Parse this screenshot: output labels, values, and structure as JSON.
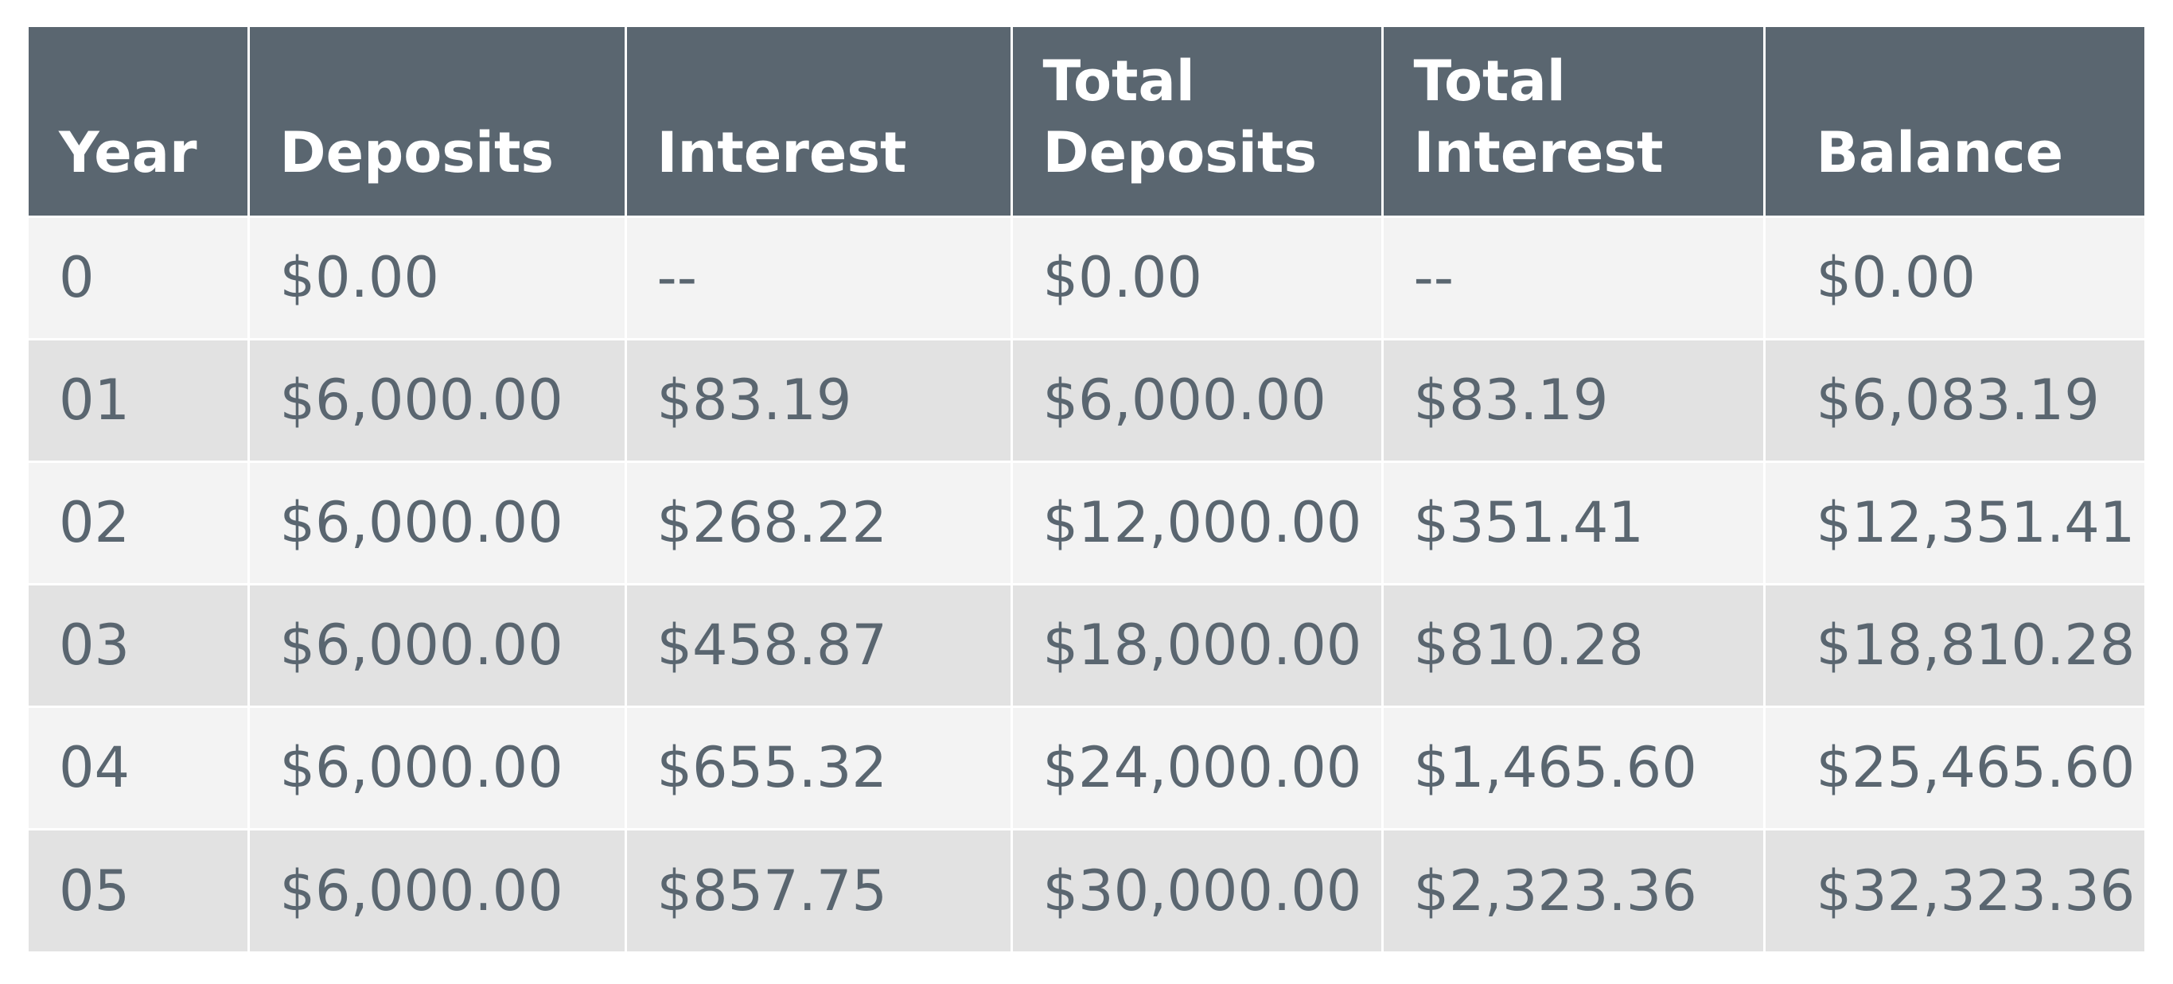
{
  "table": {
    "headers": [
      "Year",
      "Deposits",
      "Interest",
      "Total\nDeposits",
      "Total\nInterest",
      "Balance"
    ],
    "rows": [
      [
        "0",
        "$0.00",
        "--",
        "$0.00",
        "--",
        "$0.00"
      ],
      [
        "01",
        "$6,000.00",
        "$83.19",
        "$6,000.00",
        "$83.19",
        "$6,083.19"
      ],
      [
        "02",
        "$6,000.00",
        "$268.22",
        "$12,000.00",
        "$351.41",
        "$12,351.41"
      ],
      [
        "03",
        "$6,000.00",
        "$458.87",
        "$18,000.00",
        "$810.28",
        "$18,810.28"
      ],
      [
        "04",
        "$6,000.00",
        "$655.32",
        "$24,000.00",
        "$1,465.60",
        "$25,465.60"
      ],
      [
        "05",
        "$6,000.00",
        "$857.75",
        "$30,000.00",
        "$2,323.36",
        "$32,323.36"
      ]
    ]
  },
  "colors": {
    "header_bg": "#5a6670",
    "header_text": "#ffffff",
    "body_text": "#5a6670",
    "row_light": "#f3f3f3",
    "row_dark": "#e2e2e2"
  }
}
